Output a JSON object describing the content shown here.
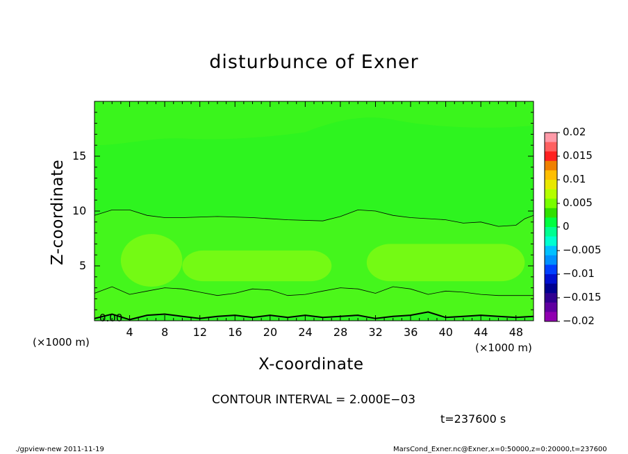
{
  "chart_data": {
    "type": "heatmap",
    "title": "disturbunce of Exner",
    "xlabel": "X-coordinate",
    "ylabel": "Z-coordinate",
    "x_unit": "(×1000 m)",
    "y_unit": "(×1000 m)",
    "xlim": [
      0,
      50
    ],
    "ylim": [
      0,
      20
    ],
    "x_ticks": [
      4,
      8,
      12,
      16,
      20,
      24,
      28,
      32,
      36,
      40,
      44,
      48
    ],
    "y_ticks": [
      5,
      10,
      15
    ],
    "contour_label": "0.00",
    "colorbar": {
      "ticks": [
        "0.02",
        "0.015",
        "0.01",
        "0.005",
        "0",
        "−0.005",
        "−0.01",
        "−0.015",
        "−0.02"
      ],
      "colors": [
        "#ff9aa8",
        "#ff6060",
        "#ff2020",
        "#f08000",
        "#ffbe00",
        "#e8e800",
        "#b4ff00",
        "#78ff00",
        "#30e000",
        "#00ff40",
        "#00ff90",
        "#00ffd0",
        "#00c0ff",
        "#0090ff",
        "#0040ff",
        "#0010d0",
        "#000090",
        "#300090",
        "#6000a0",
        "#9000b0"
      ]
    },
    "fill_colors": {
      "bottom": "#2ef41f",
      "lower_band": "#4cf71a",
      "mid_band": "#44f61c",
      "blob": "#74fa14",
      "upper": "#2ef41f",
      "top_blob": "#3af51c"
    },
    "contour_interval_text": "CONTOUR INTERVAL = 2.000E−03",
    "time_text": "t=237600 s"
  },
  "footer": {
    "left": "./gpview-new   2011-11-19",
    "right": "MarsCond_Exner.nc@Exner,x=0:50000,z=0:20000,t=237600"
  }
}
